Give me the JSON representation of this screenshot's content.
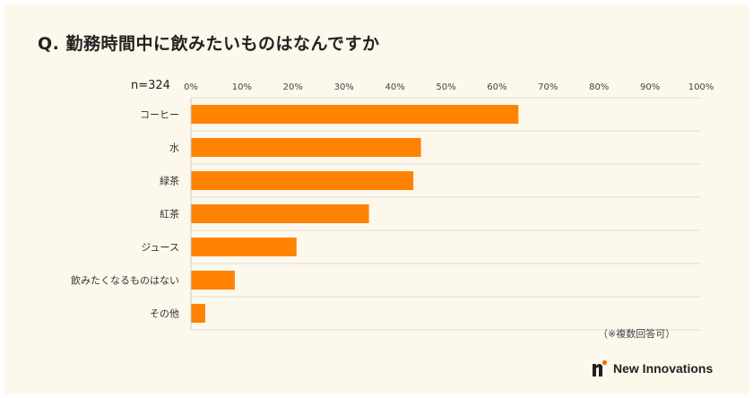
{
  "page": {
    "title": "Q. 勤務時間中に飲みたいものはなんですか",
    "sample_label": "n=324",
    "note": "（※複数回答可）",
    "brand_name": "New Innovations",
    "brand_icon": "new-innovations-logo"
  },
  "colors": {
    "bar": "#ff8200",
    "background": "#fdf8ec",
    "grid": "#dddddd",
    "text": "#222222",
    "brand_accent": "#ff6a00"
  },
  "chart_data": {
    "type": "bar",
    "orientation": "horizontal",
    "categories": [
      "コーヒー",
      "水",
      "緑茶",
      "紅茶",
      "ジュース",
      "飲みたくなるものはない",
      "その他"
    ],
    "values": [
      64.2,
      45.1,
      43.6,
      34.9,
      20.7,
      8.6,
      2.8
    ],
    "xlim": [
      0,
      100
    ],
    "xticks": [
      "0%",
      "10%",
      "20%",
      "30%",
      "40%",
      "50%",
      "60%",
      "70%",
      "80%",
      "90%",
      "100%"
    ],
    "tick_values": [
      0,
      10,
      20,
      30,
      40,
      50,
      60,
      70,
      80,
      90,
      100
    ],
    "grid": true,
    "xlabel": "",
    "ylabel": ""
  }
}
